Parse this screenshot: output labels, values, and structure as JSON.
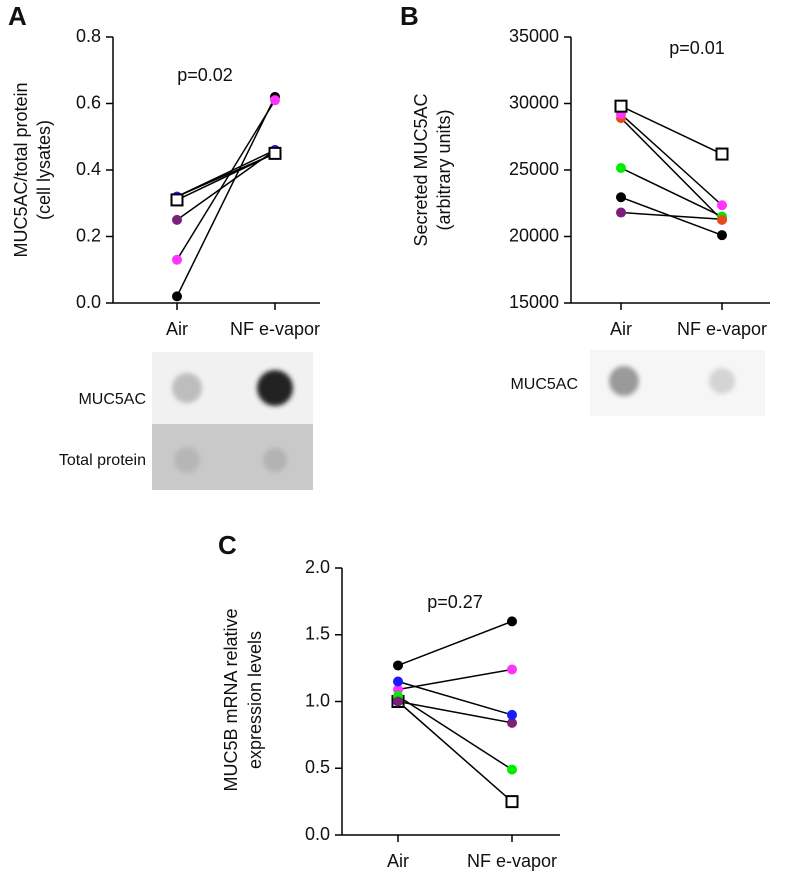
{
  "chart_data": [
    {
      "type": "line",
      "panel": "A",
      "ylabel": [
        "MUC5AC/total protein",
        "(cell lysates)"
      ],
      "annotation": "p=0.02",
      "categories": [
        "Air",
        "NF e-vapor"
      ],
      "ylim": [
        0,
        0.8
      ],
      "yticks": [
        {
          "value": 0,
          "label": "0.0"
        },
        0.2,
        0.4,
        0.6,
        0.8
      ],
      "series": [
        {
          "color": "#000000",
          "marker": "circle",
          "values": [
            0.02,
            0.62
          ]
        },
        {
          "color": "#ff33ff",
          "marker": "circle",
          "values": [
            0.13,
            0.61
          ]
        },
        {
          "color": "#7a1f7a",
          "marker": "circle",
          "values": [
            0.25,
            0.46
          ]
        },
        {
          "color": "#00ee00",
          "marker": "circle",
          "values": [
            0.32,
            0.45
          ]
        },
        {
          "color": "#1a1aff",
          "marker": "circle",
          "values": [
            0.32,
            0.46
          ]
        },
        {
          "color": "#000000",
          "marker": "square",
          "values": [
            0.31,
            0.45
          ]
        }
      ],
      "blot_labels": [
        "MUC5AC",
        "Total protein"
      ]
    },
    {
      "type": "line",
      "panel": "B",
      "ylabel": [
        "Secreted MUC5AC",
        "(arbitrary units)"
      ],
      "annotation": "p=0.01",
      "categories": [
        "Air",
        "NF e-vapor"
      ],
      "ylim": [
        15000,
        35000
      ],
      "yticks": [
        15000,
        20000,
        25000,
        30000,
        35000
      ],
      "series": [
        {
          "color": "#7a1f7a",
          "marker": "circle",
          "values": [
            21800,
            21300
          ]
        },
        {
          "color": "#000000",
          "marker": "circle",
          "values": [
            22950,
            20100
          ]
        },
        {
          "color": "#00ee00",
          "marker": "circle",
          "values": [
            25150,
            21500
          ]
        },
        {
          "color": "#e64a19",
          "marker": "circle",
          "values": [
            28900,
            21250
          ]
        },
        {
          "color": "#ff33ff",
          "marker": "circle",
          "values": [
            29200,
            22350
          ]
        },
        {
          "color": "#000000",
          "marker": "square",
          "values": [
            29800,
            26200
          ]
        }
      ],
      "blot_labels": [
        "MUC5AC"
      ]
    },
    {
      "type": "line",
      "panel": "C",
      "ylabel": [
        "MUC5B mRNA relative",
        "expression levels"
      ],
      "annotation": "p=0.27",
      "categories": [
        "Air",
        "NF e-vapor"
      ],
      "ylim": [
        0,
        2
      ],
      "yticks": [
        {
          "value": 0,
          "label": "0.0"
        },
        0.5,
        {
          "value": 1,
          "label": "1.0"
        },
        1.5,
        {
          "value": 2,
          "label": "2.0"
        }
      ],
      "series": [
        {
          "color": "#ff33ff",
          "marker": "circle",
          "values": [
            1.09,
            1.24
          ]
        },
        {
          "color": "#000000",
          "marker": "square",
          "values": [
            1.0,
            0.25
          ]
        },
        {
          "color": "#00ee00",
          "marker": "circle",
          "values": [
            1.04,
            0.49
          ]
        },
        {
          "color": "#7a1f7a",
          "marker": "circle",
          "values": [
            1.0,
            0.84
          ]
        },
        {
          "color": "#1a1aff",
          "marker": "circle",
          "values": [
            1.15,
            0.9
          ]
        },
        {
          "color": "#000000",
          "marker": "circle",
          "values": [
            1.27,
            1.6
          ]
        }
      ]
    }
  ]
}
